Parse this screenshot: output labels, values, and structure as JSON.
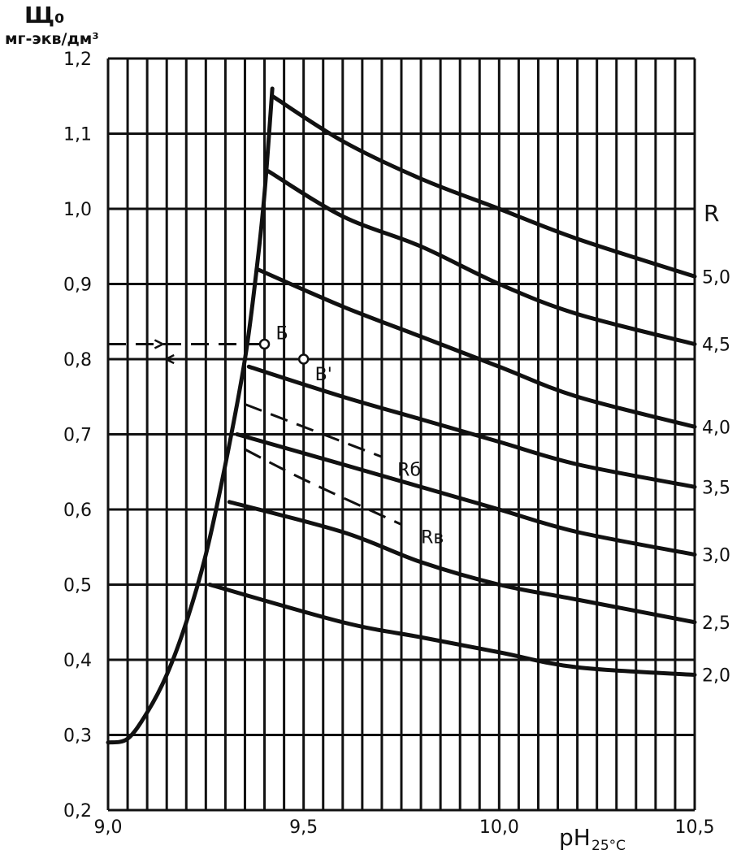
{
  "chart_data": {
    "type": "line",
    "ylabel": "Щ₀",
    "ylabel_unit": "мг-экв/дм³",
    "xlabel": "pH",
    "xlabel_sub": "25°C",
    "xlim": [
      9.0,
      10.5
    ],
    "ylim": [
      0.2,
      1.2
    ],
    "x_ticks": [
      "9,0",
      "9,5",
      "10,0",
      "10,5"
    ],
    "x_tick_values": [
      9.0,
      9.5,
      10.0,
      10.5
    ],
    "y_ticks": [
      "0,2",
      "0,3",
      "0,4",
      "0,5",
      "0,6",
      "0,7",
      "0,8",
      "0,9",
      "1,0",
      "1,1",
      "1,2"
    ],
    "y_tick_values": [
      0.2,
      0.3,
      0.4,
      0.5,
      0.6,
      0.7,
      0.8,
      0.9,
      1.0,
      1.1,
      1.2
    ],
    "grid": true,
    "right_axis_title": "R",
    "boundary_curve": [
      [
        9.0,
        0.29
      ],
      [
        9.05,
        0.295
      ],
      [
        9.1,
        0.33
      ],
      [
        9.15,
        0.38
      ],
      [
        9.2,
        0.45
      ],
      [
        9.25,
        0.54
      ],
      [
        9.3,
        0.66
      ],
      [
        9.35,
        0.8
      ],
      [
        9.38,
        0.92
      ],
      [
        9.4,
        1.02
      ],
      [
        9.42,
        1.16
      ]
    ],
    "series": [
      {
        "name": "5,0",
        "points": [
          [
            9.42,
            1.15
          ],
          [
            9.6,
            1.09
          ],
          [
            9.8,
            1.04
          ],
          [
            10.0,
            1.0
          ],
          [
            10.2,
            0.96
          ],
          [
            10.5,
            0.91
          ]
        ]
      },
      {
        "name": "4,5",
        "points": [
          [
            9.41,
            1.05
          ],
          [
            9.6,
            0.99
          ],
          [
            9.8,
            0.95
          ],
          [
            10.0,
            0.9
          ],
          [
            10.2,
            0.86
          ],
          [
            10.5,
            0.82
          ]
        ]
      },
      {
        "name": "4,0",
        "points": [
          [
            9.38,
            0.92
          ],
          [
            9.6,
            0.87
          ],
          [
            9.8,
            0.83
          ],
          [
            10.0,
            0.79
          ],
          [
            10.2,
            0.75
          ],
          [
            10.5,
            0.71
          ]
        ]
      },
      {
        "name": "3,5",
        "points": [
          [
            9.36,
            0.79
          ],
          [
            9.6,
            0.75
          ],
          [
            9.8,
            0.72
          ],
          [
            10.0,
            0.69
          ],
          [
            10.2,
            0.66
          ],
          [
            10.5,
            0.63
          ]
        ]
      },
      {
        "name": "3,0",
        "points": [
          [
            9.33,
            0.7
          ],
          [
            9.6,
            0.66
          ],
          [
            9.8,
            0.63
          ],
          [
            10.0,
            0.6
          ],
          [
            10.2,
            0.57
          ],
          [
            10.5,
            0.54
          ]
        ]
      },
      {
        "name": "2,5",
        "points": [
          [
            9.31,
            0.61
          ],
          [
            9.6,
            0.57
          ],
          [
            9.8,
            0.53
          ],
          [
            10.0,
            0.5
          ],
          [
            10.2,
            0.48
          ],
          [
            10.5,
            0.45
          ]
        ]
      },
      {
        "name": "2,0",
        "points": [
          [
            9.26,
            0.5
          ],
          [
            9.6,
            0.45
          ],
          [
            9.8,
            0.43
          ],
          [
            10.0,
            0.41
          ],
          [
            10.2,
            0.39
          ],
          [
            10.5,
            0.38
          ]
        ]
      }
    ],
    "dashed_curves": [
      {
        "name": "R_б",
        "points": [
          [
            9.35,
            0.74
          ],
          [
            9.5,
            0.71
          ],
          [
            9.7,
            0.67
          ]
        ]
      },
      {
        "name": "R_в",
        "points": [
          [
            9.35,
            0.68
          ],
          [
            9.5,
            0.64
          ],
          [
            9.75,
            0.58
          ]
        ]
      }
    ],
    "reference_lines": [
      {
        "from": [
          9.0,
          0.82
        ],
        "to": [
          9.4,
          0.82
        ],
        "arrow": "right"
      },
      {
        "from": [
          9.0,
          0.8
        ],
        "to": [
          9.87,
          0.8
        ],
        "arrow": "left"
      }
    ],
    "markers": [
      {
        "label": "Б",
        "x": 9.4,
        "y": 0.82
      },
      {
        "label": "В'",
        "x": 9.5,
        "y": 0.8
      }
    ],
    "annotations": [
      "Rб",
      "Rв"
    ]
  }
}
